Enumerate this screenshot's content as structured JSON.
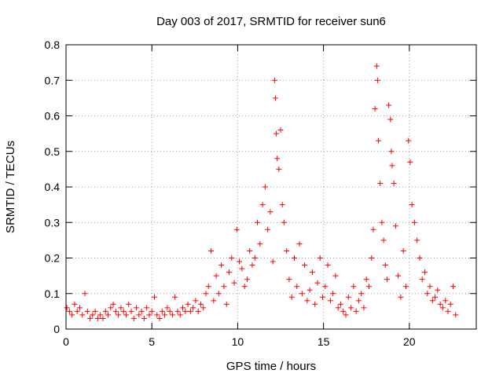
{
  "chart_data": {
    "type": "scatter",
    "title": "Day 003 of 2017, SRMTID for receiver sun6",
    "xlabel": "GPS time / hours",
    "ylabel": "SRMTID / TECUs",
    "xlim": [
      0,
      23.9
    ],
    "ylim": [
      0,
      0.8
    ],
    "xticks": [
      0,
      5,
      10,
      15,
      20
    ],
    "xtick_labels": [
      "0",
      "5",
      "10",
      "15",
      "20"
    ],
    "yticks": [
      0,
      0.1,
      0.2,
      0.3,
      0.4,
      0.5,
      0.6,
      0.7,
      0.8
    ],
    "ytick_labels": [
      "0",
      "0.1",
      "0.2",
      "0.3",
      "0.4",
      "0.5",
      "0.6",
      "0.7",
      "0.8"
    ],
    "grid": true,
    "marker": "+",
    "series": [
      {
        "name": "SRMTID",
        "color": "#ff0000",
        "x": [
          0.05,
          0.2,
          0.35,
          0.5,
          0.65,
          0.8,
          0.95,
          1.1,
          1.25,
          1.4,
          1.55,
          1.7,
          1.85,
          2.0,
          2.15,
          2.3,
          2.45,
          2.6,
          2.75,
          2.9,
          3.05,
          3.2,
          3.35,
          3.5,
          3.65,
          3.8,
          3.95,
          4.1,
          4.25,
          4.4,
          4.55,
          4.7,
          4.85,
          5.0,
          5.15,
          5.3,
          5.45,
          5.6,
          5.75,
          5.9,
          6.05,
          6.2,
          6.35,
          6.5,
          6.65,
          6.8,
          6.95,
          7.1,
          7.25,
          7.4,
          7.55,
          7.7,
          7.85,
          8.0,
          8.15,
          8.3,
          8.45,
          8.6,
          8.75,
          8.9,
          9.05,
          9.2,
          9.35,
          9.5,
          9.65,
          9.8,
          9.95,
          10.1,
          10.25,
          10.4,
          10.55,
          10.7,
          10.85,
          11.0,
          11.15,
          11.3,
          11.45,
          11.6,
          11.75,
          11.9,
          12.05,
          12.15,
          12.2,
          12.25,
          12.3,
          12.4,
          12.5,
          12.6,
          12.7,
          12.85,
          13.0,
          13.15,
          13.3,
          13.45,
          13.6,
          13.75,
          13.9,
          14.05,
          14.2,
          14.35,
          14.5,
          14.65,
          14.8,
          14.95,
          15.1,
          15.25,
          15.4,
          15.55,
          15.7,
          15.85,
          16.0,
          16.15,
          16.3,
          16.45,
          16.6,
          16.75,
          16.9,
          17.05,
          17.2,
          17.35,
          17.5,
          17.65,
          17.8,
          17.9,
          18.0,
          18.1,
          18.15,
          18.2,
          18.3,
          18.4,
          18.5,
          18.6,
          18.7,
          18.8,
          18.9,
          18.95,
          19.0,
          19.1,
          19.2,
          19.35,
          19.5,
          19.65,
          19.8,
          19.95,
          20.05,
          20.15,
          20.3,
          20.45,
          20.6,
          20.75,
          20.9,
          21.05,
          21.2,
          21.35,
          21.5,
          21.65,
          21.8,
          21.95,
          22.1,
          22.25,
          22.4,
          22.55,
          22.7
        ],
        "y": [
          0.06,
          0.05,
          0.04,
          0.07,
          0.05,
          0.06,
          0.04,
          0.1,
          0.05,
          0.03,
          0.04,
          0.05,
          0.03,
          0.04,
          0.03,
          0.05,
          0.04,
          0.06,
          0.07,
          0.05,
          0.04,
          0.06,
          0.05,
          0.04,
          0.07,
          0.05,
          0.03,
          0.06,
          0.04,
          0.05,
          0.03,
          0.06,
          0.04,
          0.05,
          0.09,
          0.04,
          0.03,
          0.05,
          0.04,
          0.06,
          0.05,
          0.04,
          0.09,
          0.05,
          0.04,
          0.06,
          0.05,
          0.07,
          0.05,
          0.06,
          0.08,
          0.05,
          0.07,
          0.06,
          0.1,
          0.12,
          0.22,
          0.08,
          0.15,
          0.1,
          0.18,
          0.12,
          0.07,
          0.16,
          0.2,
          0.13,
          0.28,
          0.19,
          0.17,
          0.12,
          0.14,
          0.22,
          0.18,
          0.2,
          0.3,
          0.24,
          0.35,
          0.4,
          0.28,
          0.33,
          0.19,
          0.7,
          0.65,
          0.55,
          0.48,
          0.45,
          0.56,
          0.35,
          0.3,
          0.22,
          0.14,
          0.09,
          0.2,
          0.12,
          0.24,
          0.1,
          0.18,
          0.08,
          0.11,
          0.16,
          0.07,
          0.13,
          0.2,
          0.09,
          0.12,
          0.18,
          0.08,
          0.1,
          0.15,
          0.06,
          0.07,
          0.05,
          0.04,
          0.09,
          0.06,
          0.12,
          0.05,
          0.08,
          0.1,
          0.06,
          0.14,
          0.12,
          0.2,
          0.28,
          0.62,
          0.74,
          0.7,
          0.53,
          0.41,
          0.3,
          0.25,
          0.18,
          0.14,
          0.63,
          0.59,
          0.5,
          0.46,
          0.41,
          0.29,
          0.15,
          0.09,
          0.22,
          0.12,
          0.53,
          0.47,
          0.35,
          0.3,
          0.25,
          0.2,
          0.14,
          0.16,
          0.1,
          0.12,
          0.08,
          0.09,
          0.11,
          0.07,
          0.06,
          0.08,
          0.05,
          0.07,
          0.12,
          0.04
        ]
      }
    ]
  }
}
